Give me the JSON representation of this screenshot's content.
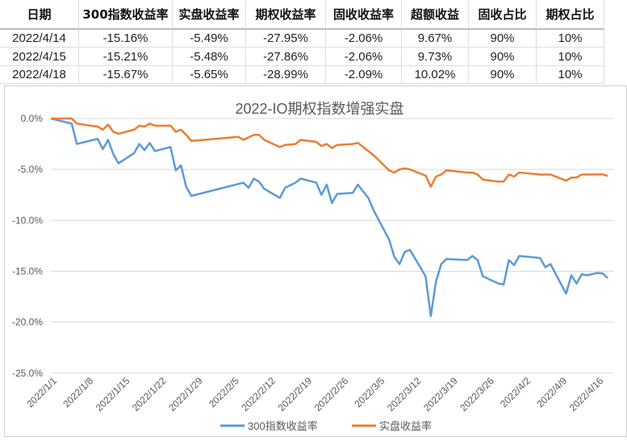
{
  "table": {
    "headers": [
      "日期",
      "300指数收益率",
      "实盘收益率",
      "期权收益率",
      "固收收益率",
      "超额收益",
      "固收占比",
      "期权占比"
    ],
    "rows": [
      [
        "2022/4/14",
        "-15.16%",
        "-5.49%",
        "-27.95%",
        "-2.06%",
        "9.67%",
        "90%",
        "10%"
      ],
      [
        "2022/4/15",
        "-15.21%",
        "-5.48%",
        "-27.86%",
        "-2.06%",
        "9.73%",
        "90%",
        "10%"
      ],
      [
        "2022/4/18",
        "-15.67%",
        "-5.65%",
        "-28.99%",
        "-2.09%",
        "10.02%",
        "90%",
        "10%"
      ]
    ]
  },
  "chart_data": {
    "type": "line",
    "title": "2022-IO期权指数增强实盘",
    "x_unit": "days since 2022/1/1",
    "xticks": [
      "2022/1/1",
      "2022/1/8",
      "2022/1/15",
      "2022/1/22",
      "2022/1/29",
      "2022/2/5",
      "2022/2/12",
      "2022/2/19",
      "2022/2/26",
      "2022/3/5",
      "2022/3/12",
      "2022/3/19",
      "2022/3/26",
      "2022/4/2",
      "2022/4/9",
      "2022/4/16"
    ],
    "yticks": [
      "0.0%",
      "-5.0%",
      "-10.0%",
      "-15.0%",
      "-20.0%",
      "-25.0%"
    ],
    "ylim": [
      -25,
      0
    ],
    "legend": "bottom",
    "series": [
      {
        "name": "300指数收益率",
        "color": "#5b9bd5",
        "points": [
          [
            0,
            0
          ],
          [
            4,
            -0.5
          ],
          [
            5,
            -2.5
          ],
          [
            9,
            -2.0
          ],
          [
            10,
            -3.0
          ],
          [
            11,
            -2.1
          ],
          [
            12,
            -3.5
          ],
          [
            13,
            -4.4
          ],
          [
            16,
            -3.4
          ],
          [
            17,
            -2.5
          ],
          [
            18,
            -3.1
          ],
          [
            19,
            -2.4
          ],
          [
            20,
            -3.2
          ],
          [
            23,
            -2.8
          ],
          [
            24,
            -5.1
          ],
          [
            25,
            -4.6
          ],
          [
            26,
            -6.7
          ],
          [
            27,
            -7.6
          ],
          [
            37,
            -6.3
          ],
          [
            38,
            -6.8
          ],
          [
            39,
            -5.9
          ],
          [
            40,
            -6.2
          ],
          [
            41,
            -6.9
          ],
          [
            44,
            -7.8
          ],
          [
            45,
            -6.8
          ],
          [
            47,
            -6.3
          ],
          [
            48,
            -5.9
          ],
          [
            51,
            -6.3
          ],
          [
            52,
            -7.5
          ],
          [
            53,
            -6.5
          ],
          [
            54,
            -8.3
          ],
          [
            55,
            -7.4
          ],
          [
            58,
            -7.3
          ],
          [
            59,
            -6.5
          ],
          [
            61,
            -7.8
          ],
          [
            62,
            -9.0
          ],
          [
            65,
            -11.9
          ],
          [
            66,
            -13.6
          ],
          [
            67,
            -14.3
          ],
          [
            68,
            -13.1
          ],
          [
            69,
            -12.9
          ],
          [
            72,
            -15.5
          ],
          [
            73,
            -19.4
          ],
          [
            74,
            -16.0
          ],
          [
            75,
            -14.3
          ],
          [
            76,
            -13.8
          ],
          [
            80,
            -13.9
          ],
          [
            81,
            -13.5
          ],
          [
            82,
            -13.9
          ],
          [
            83,
            -15.5
          ],
          [
            86,
            -16.2
          ],
          [
            87,
            -16.3
          ],
          [
            88,
            -13.9
          ],
          [
            89,
            -14.4
          ],
          [
            90,
            -13.5
          ],
          [
            94,
            -13.7
          ],
          [
            95,
            -14.6
          ],
          [
            96,
            -14.3
          ],
          [
            99,
            -17.2
          ],
          [
            100,
            -15.4
          ],
          [
            101,
            -16.2
          ],
          [
            102,
            -15.3
          ],
          [
            103,
            -15.4
          ],
          [
            105,
            -15.16
          ],
          [
            106,
            -15.21
          ],
          [
            107,
            -15.67
          ]
        ]
      },
      {
        "name": "实盘收益率",
        "color": "#ed7d31",
        "points": [
          [
            0,
            0
          ],
          [
            4,
            0
          ],
          [
            5,
            -0.5
          ],
          [
            9,
            -0.8
          ],
          [
            10,
            -1.1
          ],
          [
            11,
            -0.6
          ],
          [
            12,
            -1.3
          ],
          [
            13,
            -1.5
          ],
          [
            16,
            -1.1
          ],
          [
            17,
            -0.7
          ],
          [
            18,
            -0.8
          ],
          [
            19,
            -0.5
          ],
          [
            20,
            -0.7
          ],
          [
            23,
            -0.7
          ],
          [
            24,
            -1.3
          ],
          [
            25,
            -1.1
          ],
          [
            26,
            -1.6
          ],
          [
            27,
            -2.2
          ],
          [
            36,
            -1.8
          ],
          [
            37,
            -2.1
          ],
          [
            39,
            -1.6
          ],
          [
            40,
            -1.6
          ],
          [
            41,
            -2.1
          ],
          [
            44,
            -2.8
          ],
          [
            45,
            -2.6
          ],
          [
            47,
            -2.5
          ],
          [
            48,
            -2.1
          ],
          [
            51,
            -2.3
          ],
          [
            52,
            -2.7
          ],
          [
            53,
            -2.5
          ],
          [
            54,
            -2.9
          ],
          [
            55,
            -2.6
          ],
          [
            58,
            -2.5
          ],
          [
            59,
            -2.4
          ],
          [
            61,
            -3.2
          ],
          [
            62,
            -3.6
          ],
          [
            65,
            -5.1
          ],
          [
            66,
            -5.3
          ],
          [
            67,
            -5.0
          ],
          [
            68,
            -4.9
          ],
          [
            69,
            -5.0
          ],
          [
            72,
            -5.6
          ],
          [
            73,
            -6.7
          ],
          [
            74,
            -5.7
          ],
          [
            75,
            -5.5
          ],
          [
            76,
            -5.1
          ],
          [
            80,
            -5.3
          ],
          [
            81,
            -5.3
          ],
          [
            82,
            -5.5
          ],
          [
            83,
            -6.0
          ],
          [
            86,
            -6.2
          ],
          [
            87,
            -6.2
          ],
          [
            88,
            -5.5
          ],
          [
            89,
            -5.7
          ],
          [
            90,
            -5.3
          ],
          [
            94,
            -5.5
          ],
          [
            95,
            -5.5
          ],
          [
            96,
            -5.5
          ],
          [
            99,
            -6.1
          ],
          [
            100,
            -5.8
          ],
          [
            101,
            -5.8
          ],
          [
            102,
            -5.5
          ],
          [
            103,
            -5.5
          ],
          [
            105,
            -5.49
          ],
          [
            106,
            -5.48
          ],
          [
            107,
            -5.65
          ]
        ]
      }
    ]
  }
}
